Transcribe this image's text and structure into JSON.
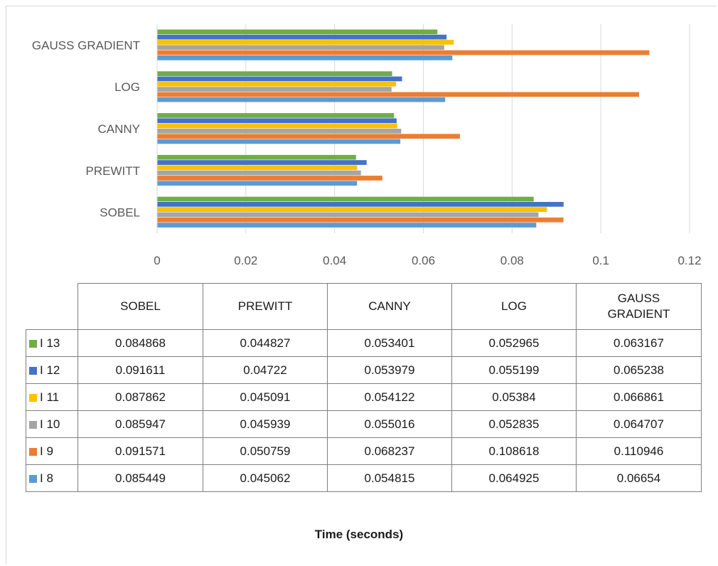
{
  "chart_data": {
    "type": "bar",
    "orientation": "horizontal",
    "categories": [
      "SOBEL",
      "PREWITT",
      "CANNY",
      "LOG",
      "GAUSS GRADIENT"
    ],
    "series": [
      {
        "name": "I 8",
        "color": "#5B9BD5",
        "values": [
          0.085449,
          0.045062,
          0.054815,
          0.064925,
          0.06654
        ]
      },
      {
        "name": "I 9",
        "color": "#ED7D31",
        "values": [
          0.091571,
          0.050759,
          0.068237,
          0.108618,
          0.110946
        ]
      },
      {
        "name": "I 10",
        "color": "#A5A5A5",
        "values": [
          0.085947,
          0.045939,
          0.055016,
          0.052835,
          0.064707
        ]
      },
      {
        "name": "I 11",
        "color": "#FFC000",
        "values": [
          0.087862,
          0.045091,
          0.054122,
          0.05384,
          0.066861
        ]
      },
      {
        "name": "I 12",
        "color": "#4472C4",
        "values": [
          0.091611,
          0.04722,
          0.053979,
          0.055199,
          0.065238
        ]
      },
      {
        "name": "I 13",
        "color": "#70AD47",
        "values": [
          0.084868,
          0.044827,
          0.053401,
          0.052965,
          0.063167
        ]
      }
    ],
    "table_headers": [
      "SOBEL",
      "PREWITT",
      "CANNY",
      "LOG",
      "GAUSS GRADIENT"
    ],
    "table_rows": [
      {
        "name": "I 13",
        "color": "#70AD47",
        "cells": [
          "0.084868",
          "0.044827",
          "0.053401",
          "0.052965",
          "0.063167"
        ]
      },
      {
        "name": "I 12",
        "color": "#4472C4",
        "cells": [
          "0.091611",
          "0.04722",
          "0.053979",
          "0.055199",
          "0.065238"
        ]
      },
      {
        "name": "I 11",
        "color": "#FFC000",
        "cells": [
          "0.087862",
          "0.045091",
          "0.054122",
          "0.05384",
          "0.066861"
        ]
      },
      {
        "name": "I 10",
        "color": "#A5A5A5",
        "cells": [
          "0.085947",
          "0.045939",
          "0.055016",
          "0.052835",
          "0.064707"
        ]
      },
      {
        "name": "I 9",
        "color": "#ED7D31",
        "cells": [
          "0.091571",
          "0.050759",
          "0.068237",
          "0.108618",
          "0.110946"
        ]
      },
      {
        "name": "I 8",
        "color": "#5B9BD5",
        "cells": [
          "0.085449",
          "0.045062",
          "0.054815",
          "0.064925",
          "0.06654"
        ]
      }
    ],
    "xlim": [
      0,
      0.12
    ],
    "xticks": [
      "0",
      "0.02",
      "0.04",
      "0.06",
      "0.08",
      "0.1",
      "0.12"
    ],
    "xlabel": "Time (seconds)",
    "title": "",
    "grid": true,
    "legend": "data-table"
  }
}
